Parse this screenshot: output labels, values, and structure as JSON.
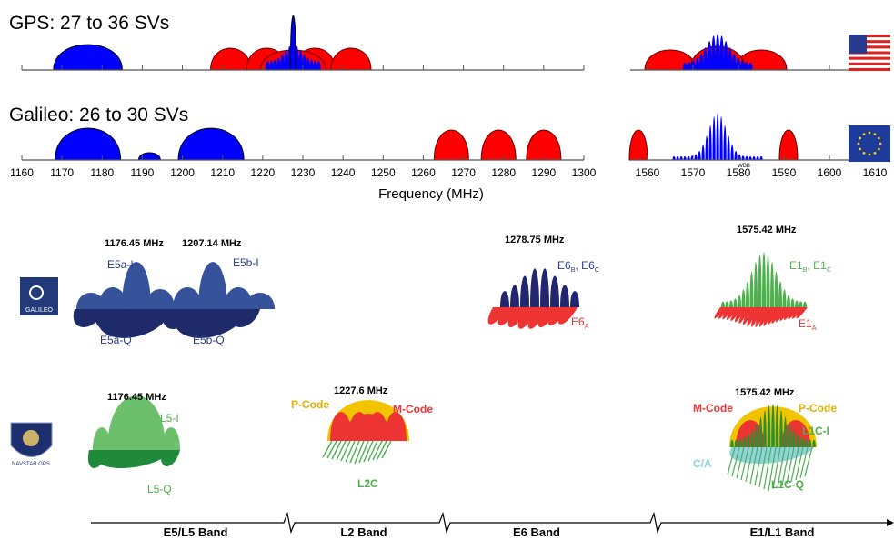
{
  "gps": {
    "title": "GPS: 27 to 36 SVs"
  },
  "galileo": {
    "title": "Galileo: 26 to 30 SVs"
  },
  "frequency_axis": {
    "label": "Frequency (MHz)",
    "ticks_left": [
      1160,
      1170,
      1180,
      1190,
      1200,
      1210,
      1220,
      1230,
      1240,
      1250,
      1260,
      1270,
      1280,
      1290,
      1300
    ],
    "ticks_right": [
      1560,
      1570,
      1580,
      1590,
      1600,
      1610
    ],
    "note": "WBB"
  },
  "galileo_signals": {
    "logo": "GALILEO",
    "e5": {
      "freq_a": "1176.45 MHz",
      "freq_b": "1207.14 MHz",
      "labels": [
        "E5a-I",
        "E5b-I",
        "E5a-Q",
        "E5b-Q"
      ]
    },
    "e6": {
      "freq": "1278.75 MHz",
      "label_bc": [
        "E6",
        "B",
        ", E6",
        "C"
      ],
      "label_a": [
        "E6",
        "A"
      ]
    },
    "e1": {
      "freq": "1575.42 MHz",
      "label_bc": [
        "E1",
        "B",
        ", E1",
        "C"
      ],
      "label_a": [
        "E1",
        "A"
      ]
    }
  },
  "gps_signals": {
    "logo": "NAVSTAR GPS",
    "l5": {
      "freq": "1176.45 MHz",
      "labels": [
        "L5-I",
        "L5-Q"
      ]
    },
    "l2": {
      "freq": "1227.6 MHz",
      "labels": [
        "P-Code",
        "M-Code",
        "L2C"
      ]
    },
    "l1": {
      "freq": "1575.42 MHz",
      "labels": [
        "M-Code",
        "P-Code",
        "L1C-I",
        "C/A",
        "L1C-Q"
      ]
    }
  },
  "bands": [
    "E5/L5 Band",
    "L2 Band",
    "E6 Band",
    "E1/L1 Band"
  ]
}
